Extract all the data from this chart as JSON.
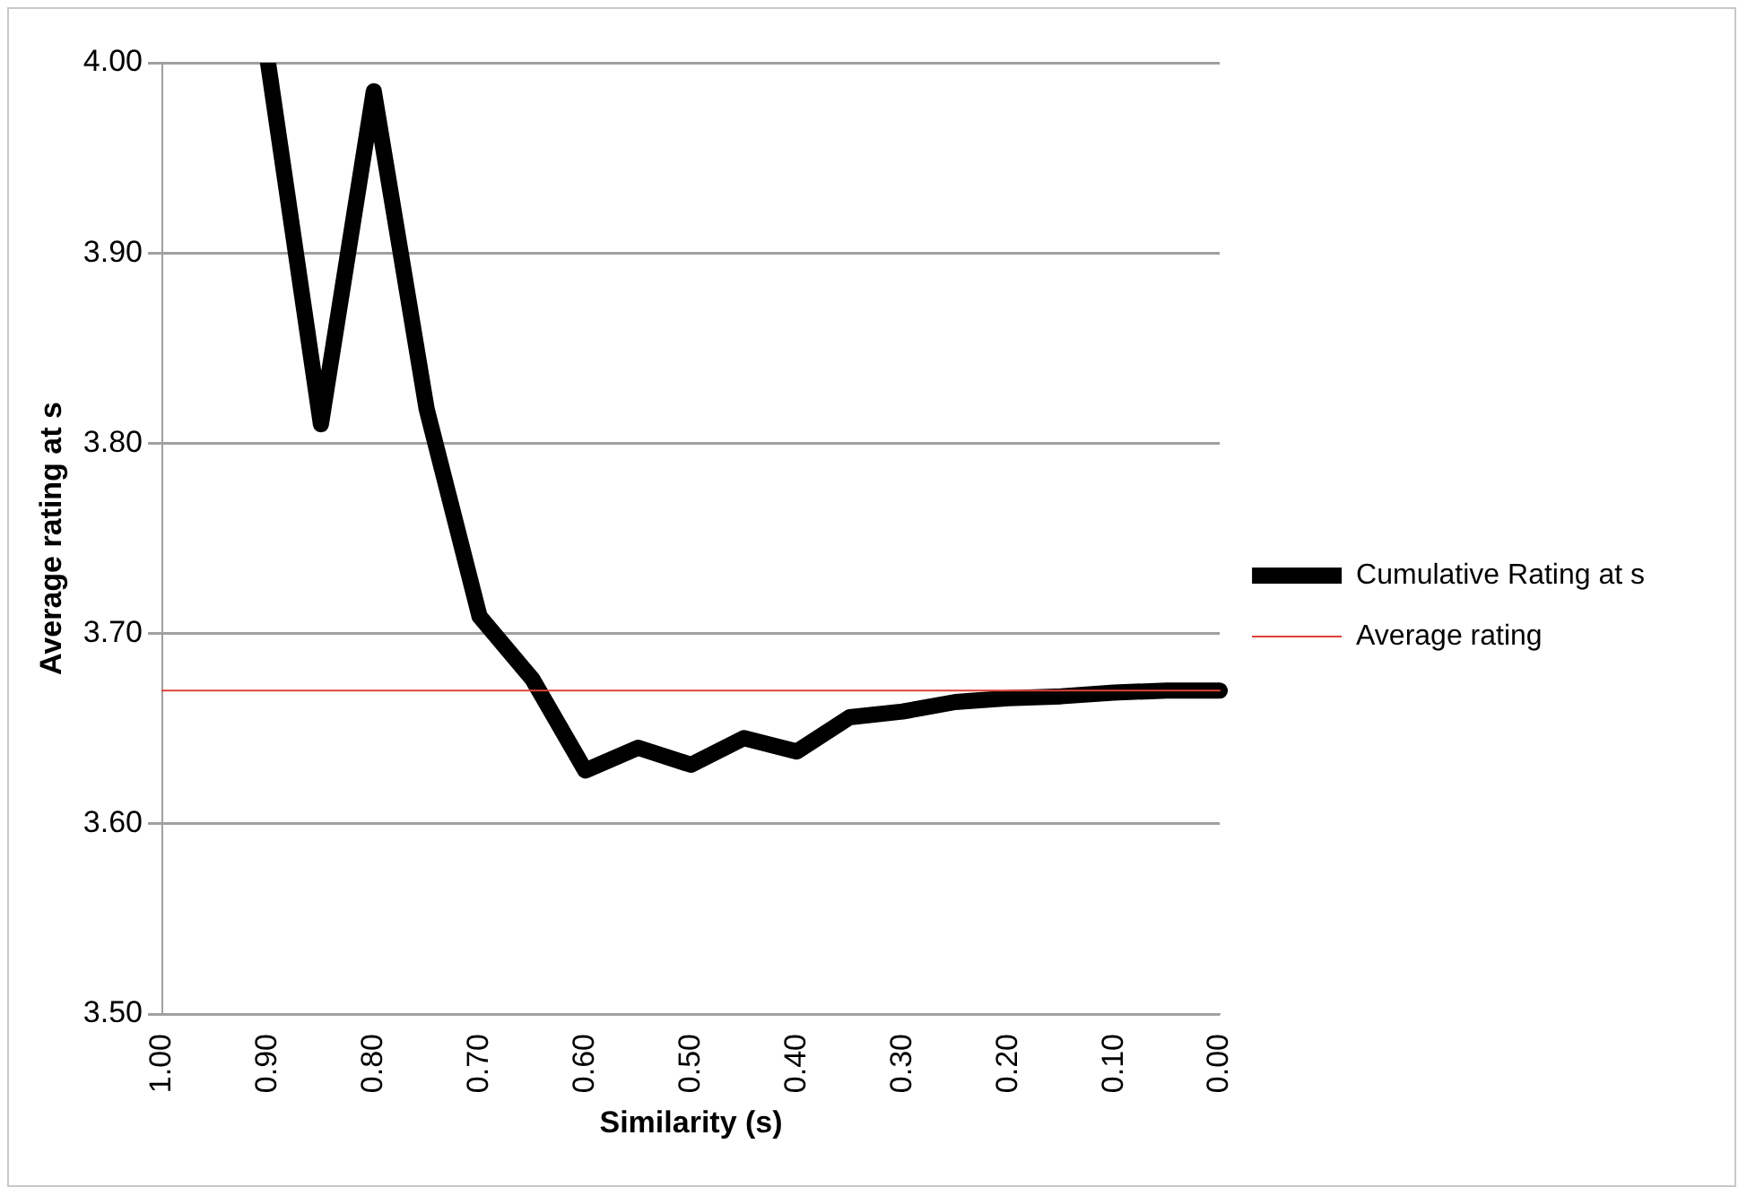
{
  "chart_data": {
    "type": "line",
    "xlabel": "Similarity (s)",
    "ylabel": "Average rating at s",
    "categories": [
      "1.00",
      null,
      "0.90",
      null,
      "0.80",
      null,
      "0.70",
      null,
      "0.60",
      null,
      "0.50",
      null,
      "0.40",
      null,
      "0.30",
      null,
      "0.20",
      null,
      "0.10",
      null,
      "0.00"
    ],
    "series": [
      {
        "name": "Cumulative Rating at s",
        "color": "#000000",
        "values": [
          null,
          null,
          4.0,
          3.81,
          3.985,
          3.818,
          3.709,
          3.676,
          3.628,
          3.64,
          3.631,
          3.645,
          3.638,
          3.656,
          3.659,
          3.664,
          3.666,
          3.667,
          3.669,
          3.67,
          3.67
        ]
      },
      {
        "name": "Average rating",
        "color": "#e0413a",
        "values": [
          3.67,
          3.67,
          3.67,
          3.67,
          3.67,
          3.67,
          3.67,
          3.67,
          3.67,
          3.67,
          3.67,
          3.67,
          3.67,
          3.67,
          3.67,
          3.67,
          3.67,
          3.67,
          3.67,
          3.67,
          3.67
        ]
      }
    ],
    "ylim": [
      3.5,
      4.0
    ],
    "yticks": [
      {
        "value": 3.5,
        "label": "3.50"
      },
      {
        "value": 3.6,
        "label": "3.60"
      },
      {
        "value": 3.7,
        "label": "3.70"
      },
      {
        "value": 3.8,
        "label": "3.80"
      },
      {
        "value": 3.9,
        "label": "3.90"
      },
      {
        "value": 4.0,
        "label": "4.00"
      }
    ],
    "grid": "y",
    "legend": "right",
    "marker": "none",
    "line_style": "solid"
  }
}
